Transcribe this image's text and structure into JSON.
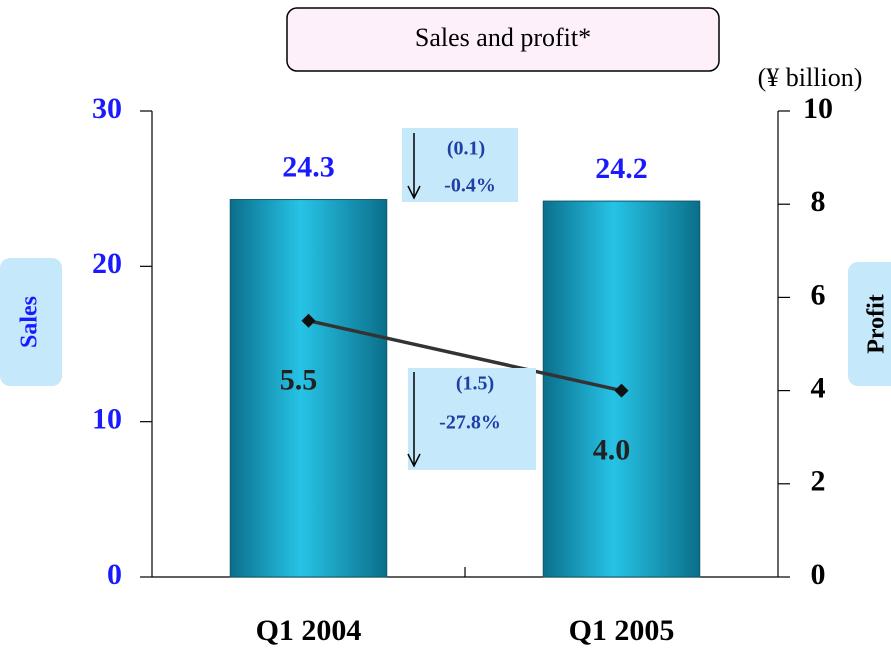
{
  "chart_data": {
    "type": "combo",
    "title": "Sales and profit*",
    "unit_label": "(¥ billion)",
    "y_label": "Sales",
    "y2_label": "Profit",
    "categories": [
      "Q1 2004",
      "Q1 2005"
    ],
    "series": [
      {
        "name": "Sales",
        "type": "bar",
        "color": "#0fa3c8",
        "values": [
          24.3,
          24.2
        ]
      },
      {
        "name": "Profit",
        "type": "line",
        "axis": "y2",
        "color": "#333333",
        "values": [
          5.5,
          4.0
        ],
        "value_labels": [
          "5.5",
          "4.0"
        ]
      }
    ],
    "ylim": [
      0,
      30
    ],
    "yticks": [
      0,
      10,
      20,
      30
    ],
    "y2lim": [
      0,
      10
    ],
    "y2ticks": [
      0,
      2,
      4,
      6,
      8,
      10
    ],
    "annotations": [
      {
        "change": "(0.1)",
        "percent": "-0.4%"
      },
      {
        "change": "(1.5)",
        "percent": "-27.8%"
      }
    ]
  }
}
